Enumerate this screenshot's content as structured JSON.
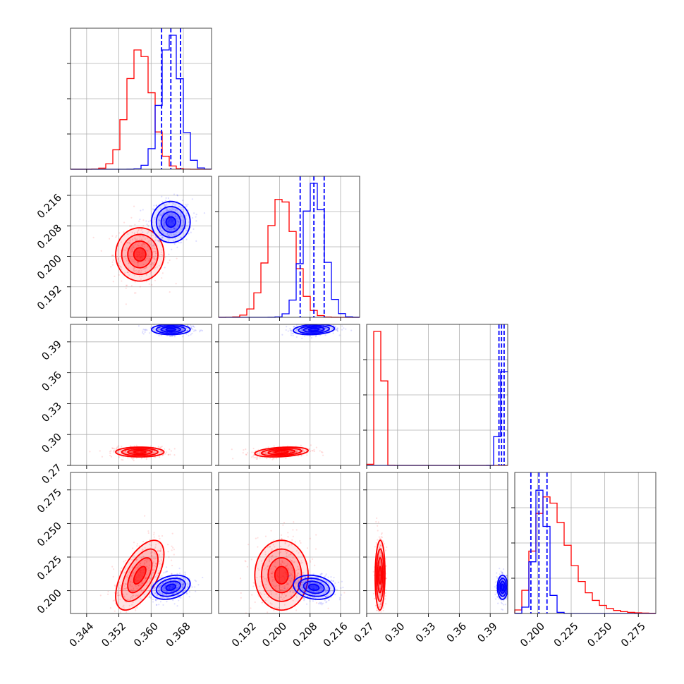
{
  "chart_data": {
    "type": "corner",
    "grid": true,
    "colors": {
      "red": "#ff0000",
      "blue": "#0000ff"
    },
    "parameters": [
      {
        "range": [
          0.34,
          0.375
        ],
        "ticks": [
          0.344,
          0.352,
          0.36,
          0.368
        ],
        "tick_labels": [
          "0.344",
          "0.352",
          "0.360",
          "0.368"
        ]
      },
      {
        "range": [
          0.184,
          0.221
        ],
        "ticks": [
          0.192,
          0.2,
          0.208,
          0.216
        ],
        "tick_labels": [
          "0.192",
          "0.200",
          "0.208",
          "0.216"
        ]
      },
      {
        "range": [
          0.27,
          0.407
        ],
        "ticks": [
          0.27,
          0.3,
          0.33,
          0.36,
          0.39
        ],
        "tick_labels": [
          "0.27",
          "0.30",
          "0.33",
          "0.36",
          "0.39"
        ]
      },
      {
        "range": [
          0.183,
          0.288
        ],
        "ticks": [
          0.2,
          0.225,
          0.25,
          0.275
        ],
        "tick_labels": [
          "0.200",
          "0.225",
          "0.250",
          "0.275"
        ]
      }
    ],
    "series": [
      {
        "color": "red",
        "mean": [
          0.3572,
          0.2005,
          0.283,
          0.2115
        ],
        "sd": [
          0.003,
          0.0035,
          0.0024,
          0.013
        ],
        "corr": {
          "0-3": 0.6,
          "1-2": 0.3,
          "2-3": 0.05
        },
        "hist_peak_relative": [
          0.89,
          0.88,
          1.0,
          0.87
        ]
      },
      {
        "color": "blue",
        "mean": [
          0.3649,
          0.209,
          0.402,
          0.2025
        ],
        "sd": [
          0.0024,
          0.0027,
          0.0025,
          0.0045
        ],
        "corr": {
          "0-3": 0.3,
          "1-3": -0.2,
          "1-2": 0.2
        },
        "hist_peak_relative": [
          1.0,
          1.0,
          0.7,
          0.92
        ],
        "quantiles_16_50_84": [
          [
            0.3626,
            0.3649,
            0.3673
          ],
          [
            0.2054,
            0.209,
            0.2117
          ],
          [
            0.3985,
            0.401,
            0.4035
          ],
          [
            0.195,
            0.201,
            0.207
          ]
        ]
      }
    ]
  }
}
